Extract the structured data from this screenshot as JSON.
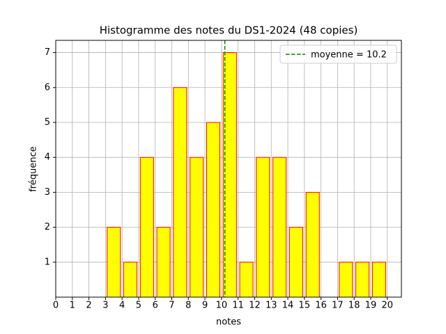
{
  "chart_data": {
    "type": "histogram",
    "title": "Histogramme des notes du DS1-2024 (48 copies)",
    "x_label": "notes",
    "y_label": "fréquence",
    "bins": [
      0,
      1,
      2,
      3,
      4,
      5,
      6,
      7,
      8,
      9,
      10,
      11,
      12,
      13,
      14,
      15,
      16,
      17,
      18,
      19,
      20
    ],
    "values": [
      0,
      0,
      0,
      2,
      1,
      4,
      2,
      6,
      4,
      5,
      7,
      1,
      4,
      4,
      2,
      3,
      0,
      1,
      1,
      1
    ],
    "color": "#ffff00",
    "edge_color": "#ff0000",
    "xlim": [
      0,
      20.85
    ],
    "ylim": [
      0,
      7.35
    ],
    "xticks": [
      0,
      1,
      2,
      3,
      4,
      5,
      6,
      7,
      8,
      9,
      10,
      11,
      12,
      13,
      14,
      15,
      16,
      17,
      18,
      19,
      20
    ],
    "yticks": [
      1,
      2,
      3,
      4,
      5,
      6,
      7
    ],
    "grid": true,
    "mean_line": {
      "value": 10.2,
      "label": "moyenne = 10.2",
      "color": "#008000"
    },
    "legend_position": "upper right"
  }
}
